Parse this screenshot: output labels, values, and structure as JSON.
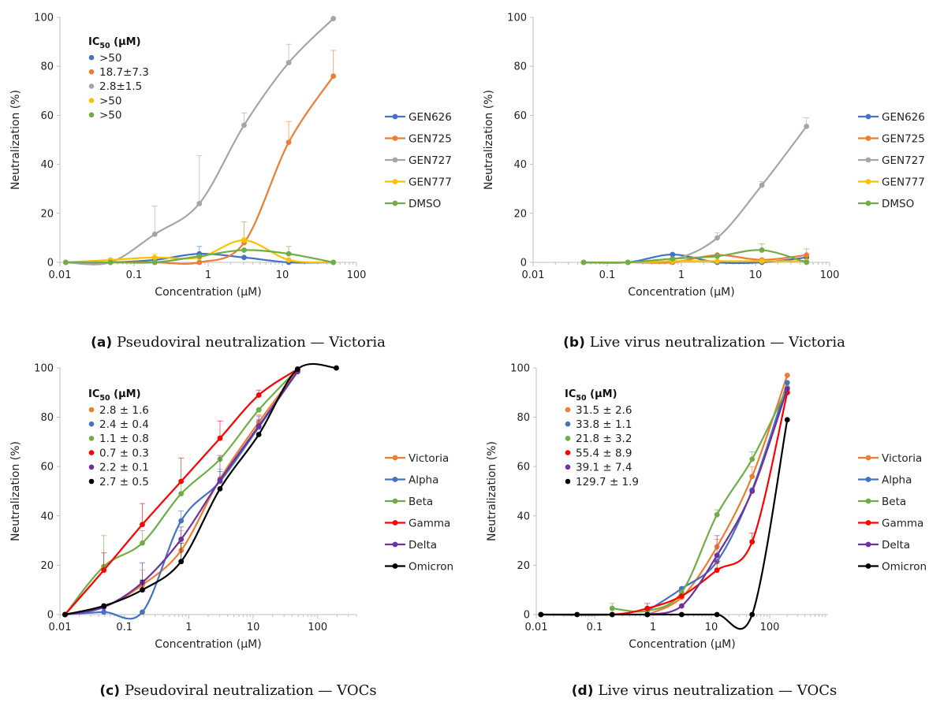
{
  "chart_data": [
    {
      "type": "line",
      "id": "a",
      "caption_letter": "(a)",
      "caption_text": "Pseudoviral neutralization — Victoria",
      "xlabel": "Concentration (μM)",
      "ylabel": "Neutralization (%)",
      "xscale": "log",
      "xlim": [
        0.01,
        100
      ],
      "ylim": [
        0,
        100
      ],
      "xticks": [
        0.01,
        0.1,
        1,
        10,
        100
      ],
      "xtick_labels": [
        "0.01",
        "0.1",
        "1",
        "10",
        "100"
      ],
      "yticks": [
        0,
        20,
        40,
        60,
        80,
        100
      ],
      "ytick_labels": [
        "0",
        "20",
        "40",
        "60",
        "80",
        "100"
      ],
      "legend_position": "right",
      "ic50_title": "IC",
      "ic50_sub": "50",
      "ic50_unit": " (μM)",
      "series": [
        {
          "name": "GEN626",
          "color": "#4472C4",
          "x": [
            0.012,
            0.048,
            0.19,
            0.76,
            3.05,
            12.2,
            48.8
          ],
          "y": [
            0,
            0,
            1,
            3.5,
            2,
            0,
            0
          ],
          "err": [
            0,
            0,
            0,
            3,
            0,
            0,
            0
          ],
          "ic50": ">50"
        },
        {
          "name": "GEN725",
          "color": "#ED7D31",
          "x": [
            0.012,
            0.048,
            0.19,
            0.76,
            3.05,
            12.2,
            48.8
          ],
          "y": [
            0,
            0,
            0,
            0,
            8,
            49,
            76
          ],
          "err": [
            0,
            0,
            0,
            0,
            8.5,
            8.5,
            10.5
          ],
          "ic50": "18.7±7.3"
        },
        {
          "name": "GEN727",
          "color": "#A5A5A5",
          "x": [
            0.012,
            0.048,
            0.19,
            0.76,
            3.05,
            12.2,
            48.8
          ],
          "y": [
            0,
            0,
            11.5,
            24,
            56,
            81.5,
            99.5
          ],
          "err": [
            0,
            0,
            11.5,
            19.5,
            5,
            7.5,
            0
          ],
          "ic50": "2.8±1.5"
        },
        {
          "name": "GEN777",
          "color": "#FFC000",
          "x": [
            0.012,
            0.048,
            0.19,
            0.76,
            3.05,
            12.2,
            48.8
          ],
          "y": [
            0,
            1,
            2,
            2,
            9,
            1,
            0
          ],
          "err": [
            0,
            0,
            1.5,
            0,
            1,
            0,
            0
          ],
          "ic50": ">50"
        },
        {
          "name": "DMSO",
          "color": "#70AD47",
          "x": [
            0.012,
            0.048,
            0.19,
            0.76,
            3.05,
            12.2,
            48.8
          ],
          "y": [
            0,
            0,
            0,
            2.5,
            5,
            3.5,
            0
          ],
          "err": [
            0,
            0,
            0,
            0,
            0,
            3,
            0
          ],
          "ic50": ">50"
        }
      ]
    },
    {
      "type": "line",
      "id": "b",
      "caption_letter": "(b)",
      "caption_text": "Live virus neutralization — Victoria",
      "xlabel": "Concentration (μM)",
      "ylabel": "Neutralization (%)",
      "xscale": "log",
      "xlim": [
        0.01,
        100
      ],
      "ylim": [
        0,
        100
      ],
      "xticks": [
        0.01,
        0.1,
        1,
        10,
        100
      ],
      "xtick_labels": [
        "0.01",
        "0.1",
        "1",
        "10",
        "100"
      ],
      "yticks": [
        0,
        20,
        40,
        60,
        80,
        100
      ],
      "ytick_labels": [
        "0",
        "20",
        "40",
        "60",
        "80",
        "100"
      ],
      "legend_position": "right",
      "series": [
        {
          "name": "GEN626",
          "color": "#4472C4",
          "x": [
            0.048,
            0.19,
            0.76,
            3.05,
            12.2,
            48.8
          ],
          "y": [
            0,
            0,
            3.2,
            0,
            0,
            2
          ],
          "err": [
            0,
            0,
            0,
            0,
            0,
            0
          ]
        },
        {
          "name": "GEN725",
          "color": "#ED7D31",
          "x": [
            0.048,
            0.19,
            0.76,
            3.05,
            12.2,
            48.8
          ],
          "y": [
            0,
            0,
            0,
            3,
            1,
            3
          ],
          "err": [
            0,
            0,
            0,
            0,
            0,
            2.5
          ]
        },
        {
          "name": "GEN727",
          "color": "#A5A5A5",
          "x": [
            0.048,
            0.19,
            0.76,
            3.05,
            12.2,
            48.8
          ],
          "y": [
            0,
            0,
            1,
            10,
            31.5,
            55.5
          ],
          "err": [
            0,
            0,
            0,
            2,
            1.5,
            3.5
          ]
        },
        {
          "name": "GEN777",
          "color": "#FFC000",
          "x": [
            0.048,
            0.19,
            0.76,
            3.05,
            12.2,
            48.8
          ],
          "y": [
            0,
            0,
            0.5,
            0.5,
            0.5,
            0.5
          ],
          "err": [
            0,
            0,
            0,
            0,
            0,
            0
          ]
        },
        {
          "name": "DMSO",
          "color": "#70AD47",
          "x": [
            0.048,
            0.19,
            0.76,
            3.05,
            12.2,
            48.8
          ],
          "y": [
            0,
            0,
            1.5,
            2.5,
            5,
            0
          ],
          "err": [
            0,
            0,
            0,
            0,
            2.5,
            0
          ]
        }
      ]
    },
    {
      "type": "line",
      "id": "c",
      "caption_letter": "(c)",
      "caption_text": "Pseudoviral neutralization — VOCs",
      "xlabel": "Concentration (μM)",
      "ylabel": "Neutralization (%)",
      "xscale": "log",
      "xlim": [
        0.01,
        400
      ],
      "ylim": [
        0,
        100
      ],
      "xticks": [
        0.01,
        0.1,
        1,
        10,
        100
      ],
      "xtick_labels": [
        "0.01",
        "0.1",
        "1",
        "10",
        "100"
      ],
      "yticks": [
        0,
        20,
        40,
        60,
        80,
        100
      ],
      "ytick_labels": [
        "0",
        "20",
        "40",
        "60",
        "80",
        "100"
      ],
      "legend_position": "right",
      "ic50_title": "IC",
      "ic50_sub": "50",
      "ic50_unit": " (μM)",
      "series": [
        {
          "name": "Victoria",
          "color": "#ED7D31",
          "x": [
            0.012,
            0.048,
            0.19,
            0.76,
            3.05,
            12.2,
            48.8
          ],
          "y": [
            0,
            3,
            12,
            26,
            55,
            78,
            99
          ],
          "err": [
            0,
            0,
            6,
            8,
            4,
            3,
            0
          ],
          "ic50": "2.8 ± 1.6"
        },
        {
          "name": "Alpha",
          "color": "#4472C4",
          "x": [
            0.012,
            0.048,
            0.19,
            0.76,
            3.05,
            12.2,
            48.8
          ],
          "y": [
            0,
            1,
            1,
            38,
            54,
            76,
            98.5
          ],
          "err": [
            0,
            0,
            0,
            4,
            4,
            3,
            0
          ],
          "ic50": "2.4 ± 0.4"
        },
        {
          "name": "Beta",
          "color": "#70AD47",
          "x": [
            0.012,
            0.048,
            0.19,
            0.76,
            3.05,
            12.2,
            48.8
          ],
          "y": [
            0,
            19.5,
            29,
            49,
            63,
            83,
            99.5
          ],
          "err": [
            0,
            12.5,
            5,
            5,
            0,
            0,
            0
          ],
          "ic50": "1.1 ± 0.8"
        },
        {
          "name": "Gamma",
          "color": "#FF0000",
          "x": [
            0.012,
            0.048,
            0.19,
            0.76,
            3.05,
            12.2,
            48.8
          ],
          "y": [
            0,
            18,
            36.5,
            54,
            71.5,
            89,
            99.5
          ],
          "err": [
            0,
            7,
            8.5,
            9.5,
            7,
            2,
            0
          ],
          "ic50": "0.7 ± 0.3"
        },
        {
          "name": "Delta",
          "color": "#7030A0",
          "x": [
            0.012,
            0.048,
            0.19,
            0.76,
            3.05,
            12.2,
            48.8
          ],
          "y": [
            0,
            3,
            13,
            30.5,
            54.5,
            76.5,
            98.5
          ],
          "err": [
            0,
            0,
            8,
            5,
            10,
            4,
            0
          ],
          "ic50": "2.2 ± 0.1"
        },
        {
          "name": "Omicron",
          "color": "#000000",
          "x": [
            0.012,
            0.048,
            0.19,
            0.76,
            3.05,
            12.2,
            48.8,
            195
          ],
          "y": [
            0,
            3.5,
            10,
            21.5,
            51,
            73,
            99.5,
            100
          ],
          "err": [
            0,
            0,
            4,
            7.5,
            0,
            0,
            0,
            0
          ],
          "ic50": "2.7 ± 0.5"
        }
      ]
    },
    {
      "type": "line",
      "id": "d",
      "caption_letter": "(d)",
      "caption_text": "Live virus neutralization — VOCs",
      "xlabel": "Concentration (μM)",
      "ylabel": "Neutralization (%)",
      "xscale": "log",
      "xlim": [
        0.01,
        1000
      ],
      "ylim": [
        0,
        100
      ],
      "xticks": [
        0.01,
        0.1,
        1,
        10,
        100
      ],
      "xtick_labels": [
        "0.01",
        "0.1",
        "1",
        "10",
        "100"
      ],
      "yticks": [
        0,
        20,
        40,
        60,
        80,
        100
      ],
      "ytick_labels": [
        "0",
        "20",
        "40",
        "60",
        "80",
        "100"
      ],
      "legend_position": "right",
      "ic50_title": "IC",
      "ic50_sub": "50",
      "ic50_unit": " (μM)",
      "series": [
        {
          "name": "Victoria",
          "color": "#ED7D31",
          "x": [
            0.8,
            3.1,
            12.5,
            50,
            200
          ],
          "y": [
            0,
            7,
            27.5,
            56,
            97
          ],
          "err": [
            0,
            0,
            3,
            4,
            0
          ],
          "ic50": "31.5 ± 2.6"
        },
        {
          "name": "Alpha",
          "color": "#4472C4",
          "x": [
            0.8,
            3.1,
            12.5,
            50,
            200
          ],
          "y": [
            1.5,
            10.5,
            21.5,
            50.5,
            94
          ],
          "err": [
            0,
            0,
            3,
            0,
            0
          ],
          "ic50": "33.8 ± 1.1"
        },
        {
          "name": "Beta",
          "color": "#70AD47",
          "x": [
            0.2,
            0.8,
            3.1,
            12.5,
            50,
            200
          ],
          "y": [
            2.5,
            1.5,
            9,
            40.5,
            63,
            92
          ],
          "err": [
            2,
            0,
            0,
            2,
            3,
            0
          ],
          "ic50": "21.8 ± 3.2"
        },
        {
          "name": "Gamma",
          "color": "#FF0000",
          "x": [
            0.012,
            0.2,
            0.8,
            3.1,
            12.5,
            50,
            200
          ],
          "y": [
            0,
            0,
            2.5,
            7.5,
            18,
            29.5,
            90
          ],
          "err": [
            0,
            0,
            2,
            0,
            3.5,
            3.5,
            2
          ],
          "ic50": "55.4 ± 8.9"
        },
        {
          "name": "Delta",
          "color": "#7030A0",
          "x": [
            0.8,
            3.1,
            12.5,
            50,
            200
          ],
          "y": [
            0,
            3.5,
            24,
            50,
            91.5
          ],
          "err": [
            0,
            0,
            8,
            0,
            0
          ],
          "ic50": "39.1 ± 7.4"
        },
        {
          "name": "Omicron",
          "color": "#000000",
          "x": [
            0.012,
            0.05,
            0.2,
            0.8,
            3.1,
            12.5,
            50,
            200
          ],
          "y": [
            0,
            0,
            0,
            0,
            0,
            0,
            0,
            79
          ],
          "err": [
            0,
            0,
            0,
            0,
            0,
            0,
            0,
            0
          ],
          "ic50": "129.7 ± 1.9"
        }
      ]
    }
  ]
}
